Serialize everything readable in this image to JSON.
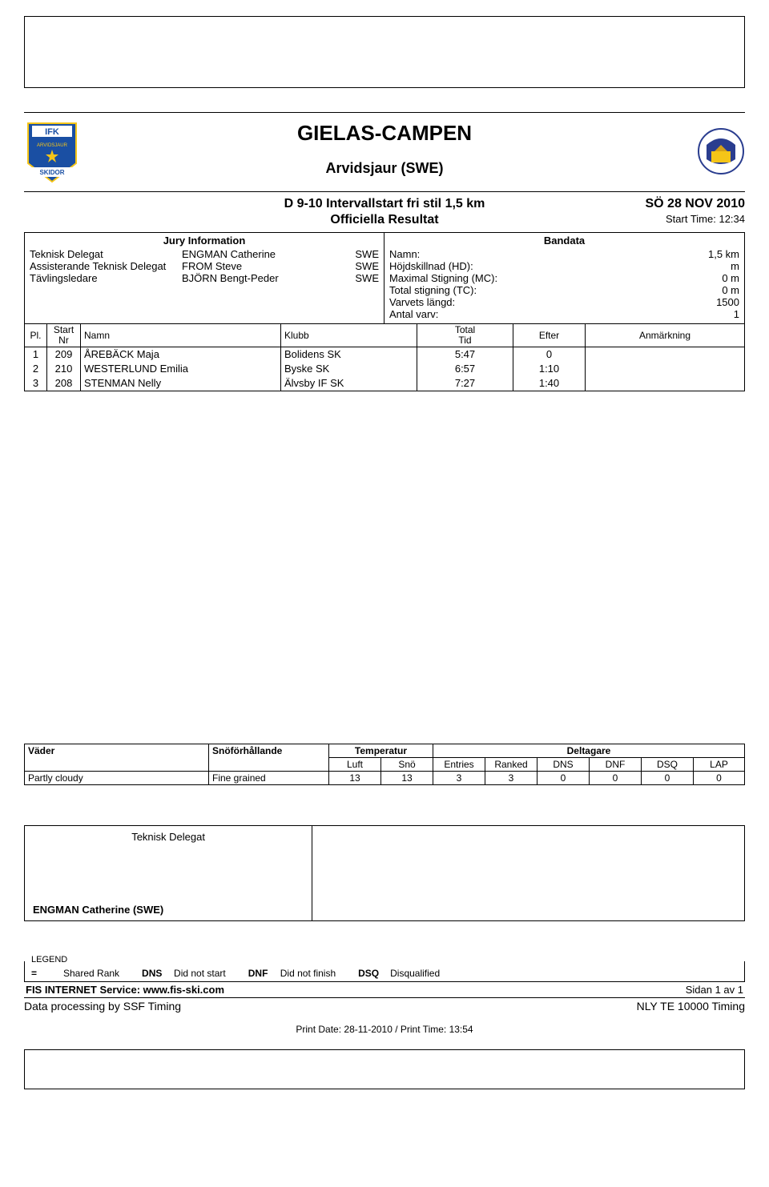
{
  "header": {
    "title": "GIELAS-CAMPEN",
    "location": "Arvidsjaur (SWE)",
    "event": "D 9-10 Intervallstart fri stil 1,5 km",
    "date": "SÖ 28 NOV 2010",
    "subtitle": "Officiella Resultat",
    "start_time": "Start Time: 12:34"
  },
  "jury": {
    "heading": "Jury Information",
    "rows": [
      {
        "role": "Teknisk Delegat",
        "name": "ENGMAN Catherine",
        "code": "SWE"
      },
      {
        "role": "Assisterande Teknisk Delegat",
        "name": "FROM Steve",
        "code": "SWE"
      },
      {
        "role": "Tävlingsledare",
        "name": "BJÖRN Bengt-Peder",
        "code": "SWE"
      }
    ]
  },
  "course": {
    "heading": "Bandata",
    "rows": [
      {
        "label": "Namn:",
        "value": "1,5 km"
      },
      {
        "label": "Höjdskillnad (HD):",
        "value": "m"
      },
      {
        "label": "Maximal Stigning (MC):",
        "value": "0 m"
      },
      {
        "label": "Total stigning (TC):",
        "value": "0 m"
      },
      {
        "label": "Varvets längd:",
        "value": "1500"
      },
      {
        "label": "Antal varv:",
        "value": "1"
      }
    ]
  },
  "columns": {
    "pl": "Pl.",
    "nr1": "Start",
    "nr2": "Nr",
    "name": "Namn",
    "club": "Klubb",
    "tid1": "Total",
    "tid2": "Tid",
    "efter": "Efter",
    "anm": "Anmärkning"
  },
  "results": [
    {
      "pl": "1",
      "nr": "209",
      "name": "ÅREBÄCK Maja",
      "club": "Bolidens SK",
      "tid": "5:47",
      "efter": "0"
    },
    {
      "pl": "2",
      "nr": "210",
      "name": "WESTERLUND Emilia",
      "club": "Byske SK",
      "tid": "6:57",
      "efter": "1:10"
    },
    {
      "pl": "3",
      "nr": "208",
      "name": "STENMAN Nelly",
      "club": "Älvsby IF SK",
      "tid": "7:27",
      "efter": "1:40"
    }
  ],
  "weather": {
    "labels": {
      "vader": "Väder",
      "sno": "Snöförhållande",
      "temp": "Temperatur",
      "delt": "Deltagare",
      "luft": "Luft",
      "snot": "Snö",
      "entries": "Entries",
      "ranked": "Ranked",
      "dns": "DNS",
      "dnf": "DNF",
      "dsq": "DSQ",
      "lap": "LAP"
    },
    "data": {
      "vader": "Partly cloudy",
      "sno": "Fine grained",
      "luft": "13",
      "snot": "13",
      "entries": "3",
      "ranked": "3",
      "dns": "0",
      "dnf": "0",
      "dsq": "0",
      "lap": "0"
    }
  },
  "signature": {
    "role": "Teknisk Delegat",
    "name": "ENGMAN Catherine (SWE)"
  },
  "legend": {
    "title": "LEGEND",
    "items": [
      {
        "sym": "=",
        "text": "Shared Rank"
      },
      {
        "sym": "DNS",
        "text": "Did not start"
      },
      {
        "sym": "DNF",
        "text": "Did not finish"
      },
      {
        "sym": "DSQ",
        "text": "Disqualified"
      }
    ]
  },
  "footer": {
    "fis": "FIS INTERNET Service: www.fis-ski.com",
    "page": "Sidan 1 av 1",
    "processing": "Data processing by SSF Timing",
    "timing": "NLY TE 10000 Timing",
    "print": "Print Date: 28-11-2010 / Print Time: 13:54"
  },
  "logo_left": {
    "bg": "#1a4fa3",
    "accent": "#f5c518",
    "text": "IFK",
    "sub": "SKIDOR"
  },
  "logo_right": {
    "bg": "#2a3d8f",
    "accent": "#f5c518"
  }
}
